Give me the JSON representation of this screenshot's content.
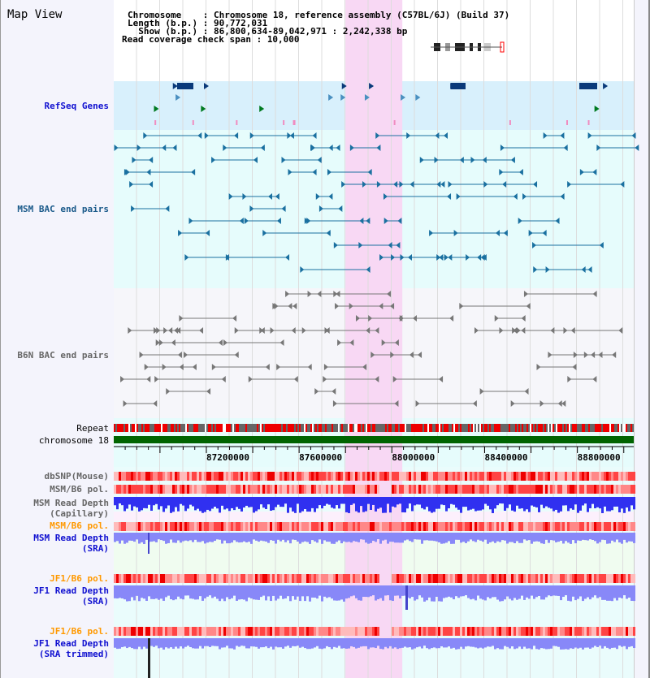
{
  "title": "Map View",
  "header": {
    "chromosome_label": "Chromosome    : ",
    "chromosome": "Chromosome 18, reference assembly (C57BL/6J) (Build 37)",
    "length_label": "Length (b.p.) : ",
    "length": "90,772,031",
    "show_label": "  Show (b.p.) : ",
    "show": "86,800,634-89,042,971 : 2,242,338 bp",
    "span_label": "Read coverage check span : ",
    "span": "10,000"
  },
  "tracks": {
    "refseq": "RefSeq Genes",
    "msm_bac": "MSM BAC end pairs",
    "b6n_bac": "B6N BAC end pairs",
    "repeat": "Repeat",
    "chromosome": "chromosome 18",
    "dbsnp": "dbSNP(Mouse)",
    "msm_pol": "MSM/B6 pol.",
    "msm_cap": "MSM Read Depth\n(Capillary)",
    "msm_pol2": "MSM/B6 pol.",
    "msm_sra": "MSM Read Depth\n(SRA)",
    "jf1_pol": "JF1/B6 pol.",
    "jf1_sra": "JF1 Read Depth\n(SRA)",
    "jf1_pol2": "JF1/B6 pol.",
    "jf1_trim": "JF1 Read Depth\n(SRA trimmed)"
  },
  "view": {
    "start": 86800634,
    "end": 89042971,
    "highlight": [
      87800000,
      88045000
    ]
  },
  "axis": {
    "labels": [
      "87200000",
      "87600000",
      "88000000",
      "88400000",
      "88800000"
    ],
    "values": [
      87200000,
      87600000,
      88000000,
      88400000,
      88800000
    ]
  },
  "colors": {
    "highlight": "#f8d8f4",
    "refseq_bg": "#d8f0fc",
    "msm_bg": "#e6fcfc",
    "chrom": "#006400",
    "depth": "#3030f0",
    "depth_sra": "#8888f8"
  }
}
